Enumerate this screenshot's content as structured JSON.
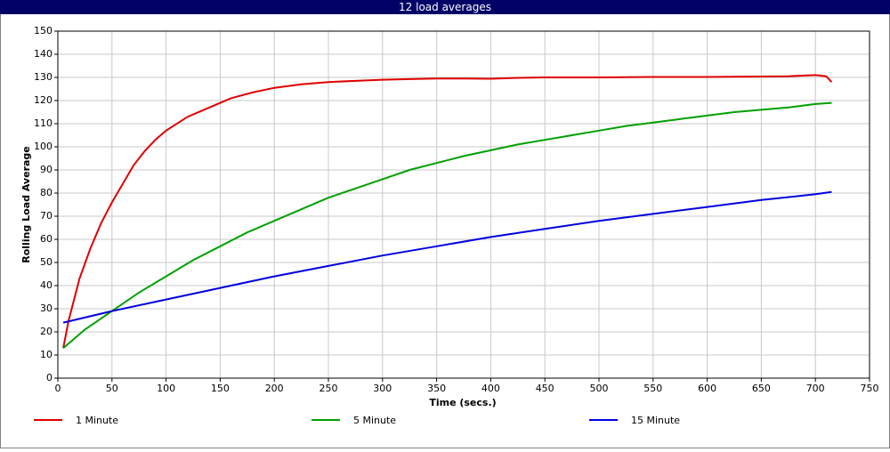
{
  "chart_data": {
    "type": "line",
    "title": "12 load averages",
    "x_label": "Time (secs.)",
    "y_label": "Rolling Load Average",
    "xlim": [
      0,
      750
    ],
    "xticks": [
      0,
      50,
      100,
      150,
      200,
      250,
      300,
      350,
      400,
      450,
      500,
      550,
      600,
      650,
      700,
      750
    ],
    "ylim": [
      0,
      150
    ],
    "yticks": [
      0,
      10,
      20,
      30,
      40,
      50,
      60,
      70,
      80,
      90,
      100,
      110,
      120,
      130,
      140,
      150
    ],
    "grid": true,
    "legend": "bottom",
    "series": [
      {
        "name": "1 Minute",
        "color": "#e00000",
        "x": [
          5,
          10,
          20,
          30,
          40,
          50,
          60,
          70,
          80,
          90,
          100,
          120,
          140,
          160,
          180,
          200,
          225,
          250,
          275,
          300,
          325,
          350,
          375,
          400,
          425,
          450,
          475,
          500,
          550,
          600,
          650,
          675,
          700,
          710,
          715
        ],
        "values": [
          13,
          25,
          43,
          56,
          67,
          76,
          84,
          92,
          98,
          103,
          107,
          113,
          117,
          121,
          123.5,
          125.5,
          127,
          128,
          128.5,
          129,
          129.3,
          129.5,
          129.5,
          129.4,
          129.8,
          130,
          130,
          130,
          130.2,
          130.2,
          130.4,
          130.5,
          131,
          130.5,
          128
        ]
      },
      {
        "name": "5 Minute",
        "color": "#00a000",
        "x": [
          5,
          25,
          50,
          75,
          100,
          125,
          150,
          175,
          200,
          225,
          250,
          275,
          300,
          325,
          350,
          375,
          400,
          425,
          450,
          475,
          500,
          525,
          550,
          575,
          600,
          625,
          650,
          675,
          700,
          715
        ],
        "values": [
          13,
          21,
          29,
          37,
          44,
          51,
          57,
          63,
          68,
          73,
          78,
          82,
          86,
          90,
          93,
          96,
          98.5,
          101,
          103,
          105,
          107,
          109,
          110.5,
          112,
          113.5,
          115,
          116,
          117,
          118.5,
          119
        ]
      },
      {
        "name": "15 Minute",
        "color": "#0000e0",
        "x": [
          5,
          50,
          100,
          150,
          200,
          250,
          300,
          350,
          400,
          450,
          500,
          550,
          600,
          650,
          700,
          715
        ],
        "values": [
          24,
          29,
          34,
          39,
          44,
          48.5,
          53,
          57,
          61,
          64.5,
          68,
          71,
          74,
          77,
          79.5,
          80.5
        ]
      }
    ]
  }
}
